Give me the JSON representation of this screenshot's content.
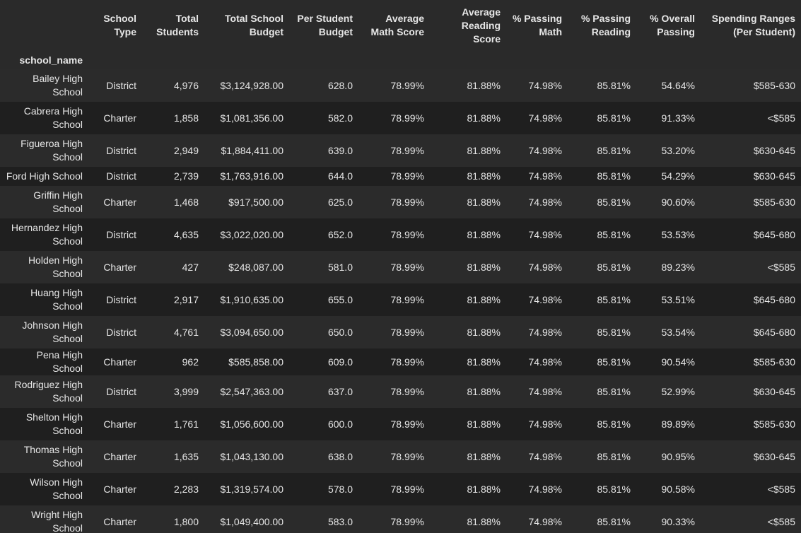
{
  "columns": [
    "",
    "School Type",
    "Total Students",
    "Total School Budget",
    "Per Student Budget",
    "Average Math Score",
    "Average Reading Score",
    "% Passing Math",
    "% Passing Reading",
    "% Overall Passing",
    "Spending Ranges (Per Student)"
  ],
  "index_name": "school_name",
  "rows": [
    {
      "name": "Bailey High School",
      "type": "District",
      "students": "4,976",
      "budget": "$3,124,928.00",
      "per_student": "628.0",
      "math": "78.99%",
      "reading": "81.88%",
      "pass_math": "74.98%",
      "pass_reading": "85.81%",
      "overall": "54.64%",
      "range": "$585-630"
    },
    {
      "name": "Cabrera High School",
      "type": "Charter",
      "students": "1,858",
      "budget": "$1,081,356.00",
      "per_student": "582.0",
      "math": "78.99%",
      "reading": "81.88%",
      "pass_math": "74.98%",
      "pass_reading": "85.81%",
      "overall": "91.33%",
      "range": "<$585"
    },
    {
      "name": "Figueroa High School",
      "type": "District",
      "students": "2,949",
      "budget": "$1,884,411.00",
      "per_student": "639.0",
      "math": "78.99%",
      "reading": "81.88%",
      "pass_math": "74.98%",
      "pass_reading": "85.81%",
      "overall": "53.20%",
      "range": "$630-645"
    },
    {
      "name": "Ford High School",
      "type": "District",
      "students": "2,739",
      "budget": "$1,763,916.00",
      "per_student": "644.0",
      "math": "78.99%",
      "reading": "81.88%",
      "pass_math": "74.98%",
      "pass_reading": "85.81%",
      "overall": "54.29%",
      "range": "$630-645"
    },
    {
      "name": "Griffin High School",
      "type": "Charter",
      "students": "1,468",
      "budget": "$917,500.00",
      "per_student": "625.0",
      "math": "78.99%",
      "reading": "81.88%",
      "pass_math": "74.98%",
      "pass_reading": "85.81%",
      "overall": "90.60%",
      "range": "$585-630"
    },
    {
      "name": "Hernandez High School",
      "type": "District",
      "students": "4,635",
      "budget": "$3,022,020.00",
      "per_student": "652.0",
      "math": "78.99%",
      "reading": "81.88%",
      "pass_math": "74.98%",
      "pass_reading": "85.81%",
      "overall": "53.53%",
      "range": "$645-680"
    },
    {
      "name": "Holden High School",
      "type": "Charter",
      "students": "427",
      "budget": "$248,087.00",
      "per_student": "581.0",
      "math": "78.99%",
      "reading": "81.88%",
      "pass_math": "74.98%",
      "pass_reading": "85.81%",
      "overall": "89.23%",
      "range": "<$585"
    },
    {
      "name": "Huang High School",
      "type": "District",
      "students": "2,917",
      "budget": "$1,910,635.00",
      "per_student": "655.0",
      "math": "78.99%",
      "reading": "81.88%",
      "pass_math": "74.98%",
      "pass_reading": "85.81%",
      "overall": "53.51%",
      "range": "$645-680"
    },
    {
      "name": "Johnson High School",
      "type": "District",
      "students": "4,761",
      "budget": "$3,094,650.00",
      "per_student": "650.0",
      "math": "78.99%",
      "reading": "81.88%",
      "pass_math": "74.98%",
      "pass_reading": "85.81%",
      "overall": "53.54%",
      "range": "$645-680"
    },
    {
      "name": "Pena High School",
      "type": "Charter",
      "students": "962",
      "budget": "$585,858.00",
      "per_student": "609.0",
      "math": "78.99%",
      "reading": "81.88%",
      "pass_math": "74.98%",
      "pass_reading": "85.81%",
      "overall": "90.54%",
      "range": "$585-630"
    },
    {
      "name": "Rodriguez High School",
      "type": "District",
      "students": "3,999",
      "budget": "$2,547,363.00",
      "per_student": "637.0",
      "math": "78.99%",
      "reading": "81.88%",
      "pass_math": "74.98%",
      "pass_reading": "85.81%",
      "overall": "52.99%",
      "range": "$630-645"
    },
    {
      "name": "Shelton High School",
      "type": "Charter",
      "students": "1,761",
      "budget": "$1,056,600.00",
      "per_student": "600.0",
      "math": "78.99%",
      "reading": "81.88%",
      "pass_math": "74.98%",
      "pass_reading": "85.81%",
      "overall": "89.89%",
      "range": "$585-630"
    },
    {
      "name": "Thomas High School",
      "type": "Charter",
      "students": "1,635",
      "budget": "$1,043,130.00",
      "per_student": "638.0",
      "math": "78.99%",
      "reading": "81.88%",
      "pass_math": "74.98%",
      "pass_reading": "85.81%",
      "overall": "90.95%",
      "range": "$630-645"
    },
    {
      "name": "Wilson High School",
      "type": "Charter",
      "students": "2,283",
      "budget": "$1,319,574.00",
      "per_student": "578.0",
      "math": "78.99%",
      "reading": "81.88%",
      "pass_math": "74.98%",
      "pass_reading": "85.81%",
      "overall": "90.58%",
      "range": "<$585"
    },
    {
      "name": "Wright High School",
      "type": "Charter",
      "students": "1,800",
      "budget": "$1,049,400.00",
      "per_student": "583.0",
      "math": "78.99%",
      "reading": "81.88%",
      "pass_math": "74.98%",
      "pass_reading": "85.81%",
      "overall": "90.33%",
      "range": "<$585"
    }
  ]
}
